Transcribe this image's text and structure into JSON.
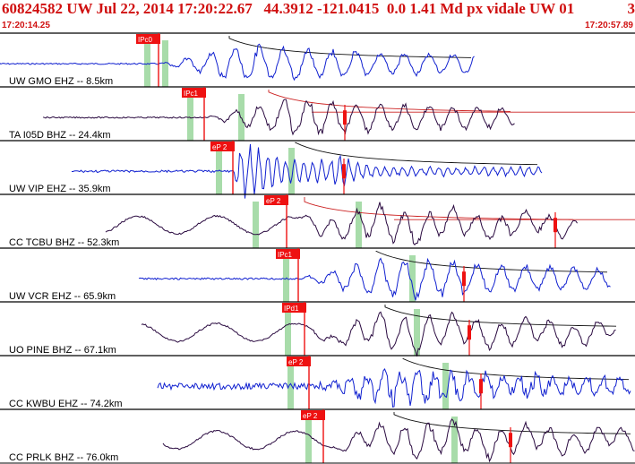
{
  "header": {
    "event_line": "60824582 UW Jul 22, 2014 17:20:22.67   44.3912 -121.0415  0.0 1.41 Md px vidale UW 01",
    "event_suffix": "3",
    "start_time": "17:20:14.25",
    "end_time": "17:20:57.89"
  },
  "colors": {
    "title": "#d01010",
    "pick": "#ee1111",
    "blue_trace": "#1020d0",
    "dark_trace": "#2a0a40",
    "window_band": "#a8dcaa"
  },
  "channels": [
    {
      "label": "UW GMO EHZ -- 8.5km",
      "pick": "IPc0",
      "trace_color": "blue",
      "style": "ramp",
      "amp": 22,
      "noise": 1.5
    },
    {
      "label": "TA I05D BHZ -- 24.4km",
      "pick": "IPc1",
      "trace_color": "dark",
      "style": "ramp",
      "amp": 22,
      "noise": 1.5
    },
    {
      "label": "UW VIP EHZ -- 35.9km",
      "pick": "eP 2",
      "trace_color": "blue",
      "style": "burst",
      "amp": 25,
      "noise": 2.5
    },
    {
      "label": "CC TCBU BHZ -- 52.3km",
      "pick": "eP 2",
      "trace_color": "dark",
      "style": "swell",
      "amp": 20,
      "noise": 2
    },
    {
      "label": "UW VCR EHZ -- 65.9km",
      "pick": "IPc1",
      "trace_color": "blue",
      "style": "ramp",
      "amp": 24,
      "noise": 2
    },
    {
      "label": "UO PINE BHZ -- 67.1km",
      "pick": "IPd1",
      "trace_color": "dark",
      "style": "swell",
      "amp": 22,
      "noise": 2
    },
    {
      "label": "CC KWBU EHZ -- 74.2km",
      "pick": "eP 2",
      "trace_color": "blue",
      "style": "noisy",
      "amp": 24,
      "noise": 7
    },
    {
      "label": "CC PRLK BHZ -- 76.0km",
      "pick": "eP 2",
      "trace_color": "dark",
      "style": "swell",
      "amp": 22,
      "noise": 2
    }
  ]
}
